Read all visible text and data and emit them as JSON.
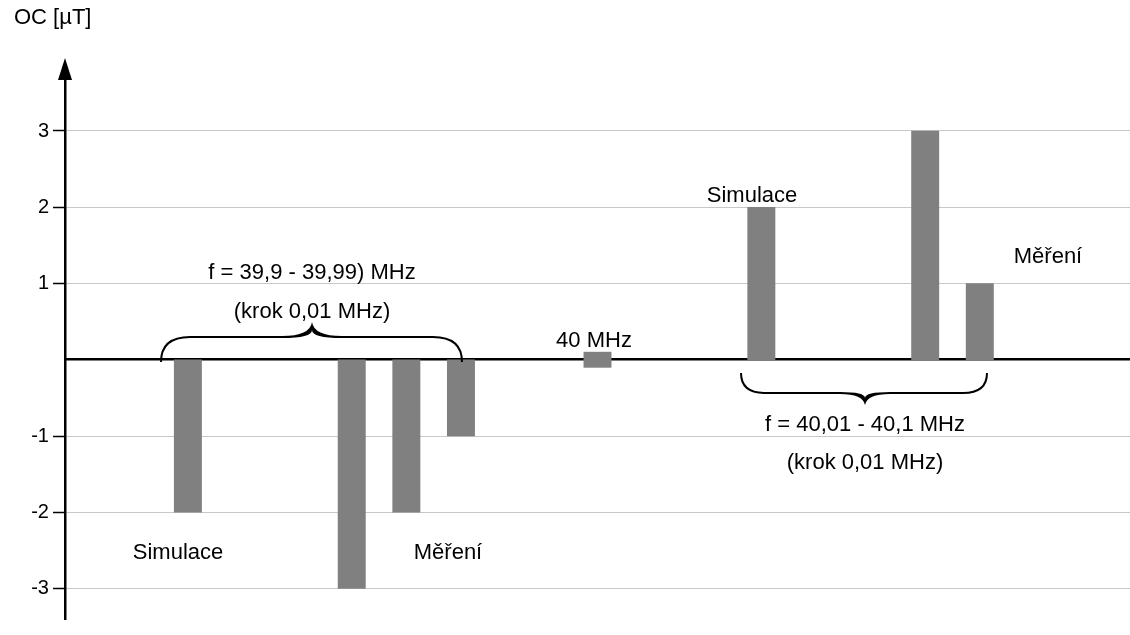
{
  "chart_data": {
    "type": "bar",
    "ylabel": "OC [µT]",
    "categories": [
      null,
      null,
      null,
      null,
      null,
      null,
      null,
      null,
      null,
      null,
      null,
      null,
      null,
      null,
      null,
      null,
      null,
      null,
      null,
      null,
      null,
      null,
      null,
      null,
      null,
      null,
      null,
      null,
      null,
      null,
      null,
      null,
      null,
      null,
      null,
      null,
      null,
      null,
      null
    ],
    "values": [
      null,
      null,
      null,
      null,
      -2,
      null,
      null,
      null,
      null,
      null,
      -3,
      null,
      -2,
      null,
      -1,
      null,
      null,
      null,
      null,
      0.2,
      null,
      null,
      null,
      null,
      null,
      2,
      null,
      null,
      null,
      null,
      null,
      3,
      null,
      1,
      null,
      null,
      null,
      null,
      null
    ],
    "base": [
      null,
      null,
      null,
      null,
      0,
      null,
      null,
      null,
      null,
      null,
      0,
      null,
      0,
      null,
      0,
      null,
      null,
      null,
      null,
      -0.1,
      null,
      null,
      null,
      null,
      null,
      0,
      null,
      null,
      null,
      null,
      null,
      0,
      null,
      0,
      null,
      null,
      null,
      null,
      null
    ],
    "color": "#808080",
    "ylim": [
      -3.4,
      3.8
    ],
    "yticks": [
      -3,
      -2,
      -1,
      1,
      2,
      3
    ],
    "grid": "y",
    "tick_labels": "y",
    "legend": false,
    "annotations": [
      "f = 39,9 - 39,99) MHz",
      "(krok 0,01 MHz)",
      "Simulace",
      "Měření",
      "40 MHz",
      "Simulace",
      "Měření",
      "f = 40,01 - 40,1 MHz",
      "(krok 0,01 MHz)"
    ]
  }
}
